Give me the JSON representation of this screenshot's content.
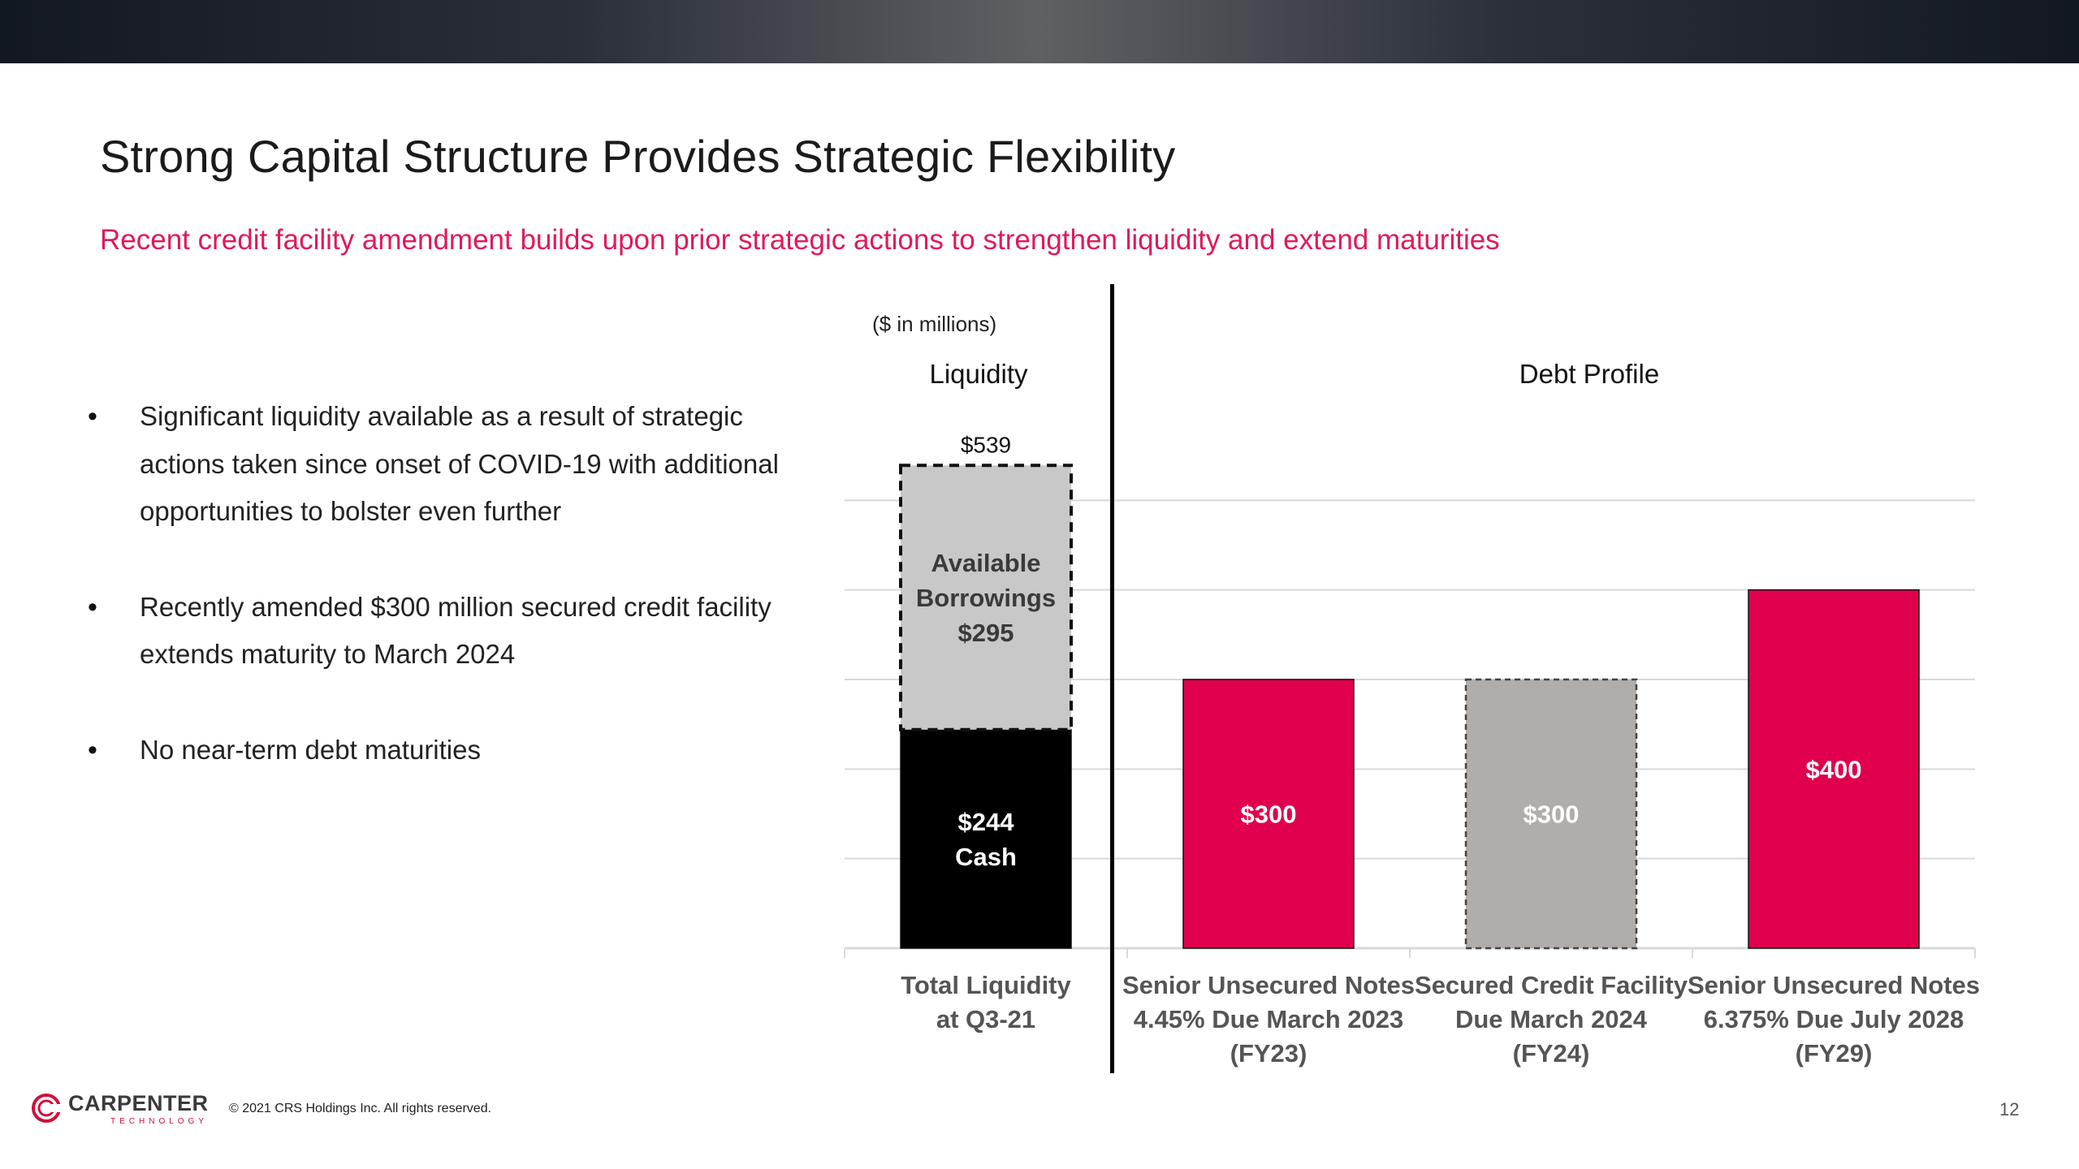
{
  "slide": {
    "title": "Strong Capital Structure Provides Strategic Flexibility",
    "subtitle": "Recent credit facility amendment builds upon prior strategic actions to strengthen liquidity and extend maturities",
    "bullets": [
      "Significant liquidity available as a result of strategic actions taken since onset of COVID-19 with additional opportunities to bolster even further",
      "Recently amended $300 million secured credit facility extends maturity to March 2024",
      "No near-term debt maturities"
    ],
    "units_note": "($ in millions)",
    "liquidity_label": "Liquidity",
    "debt_label": "Debt Profile",
    "footer": {
      "logo_text": "CARPENTER",
      "logo_sub": "TECHNOLOGY",
      "copyright": "© 2021 CRS Holdings Inc. All rights reserved.",
      "page_number": "12"
    }
  },
  "chart_data": {
    "type": "bar",
    "categories": [
      [
        "Total Liquidity",
        "at Q3-21"
      ],
      [
        "Senior Unsecured Notes",
        "4.45% Due March 2023",
        "(FY23)"
      ],
      [
        "Secured Credit Facility",
        "Due March 2024",
        "(FY24)"
      ],
      [
        "Senior Unsecured Notes",
        "6.375% Due July 2028",
        "(FY29)"
      ]
    ],
    "ylim": [
      0,
      600
    ],
    "grid": true,
    "bars": [
      {
        "segments": [
          {
            "value": 244,
            "color": "#000000",
            "text_color": "#ffffff",
            "dashed": false,
            "label": [
              "$244",
              "Cash"
            ]
          },
          {
            "value": 295,
            "color": "#c8c8c8",
            "text_color": "#3a3a3a",
            "dashed": true,
            "label": [
              "Available",
              "Borrowings",
              "$295"
            ]
          }
        ],
        "total_label": "$539"
      },
      {
        "segments": [
          {
            "value": 300,
            "color": "#e0004d",
            "text_color": "#ffffff",
            "dashed": false,
            "label": [
              "$300"
            ]
          }
        ]
      },
      {
        "segments": [
          {
            "value": 300,
            "color": "#b0adab",
            "text_color": "#ffffff",
            "dashed": true,
            "label": [
              "$300"
            ]
          }
        ]
      },
      {
        "segments": [
          {
            "value": 400,
            "color": "#e0004d",
            "text_color": "#ffffff",
            "dashed": false,
            "label": [
              "$400"
            ]
          }
        ]
      }
    ]
  }
}
